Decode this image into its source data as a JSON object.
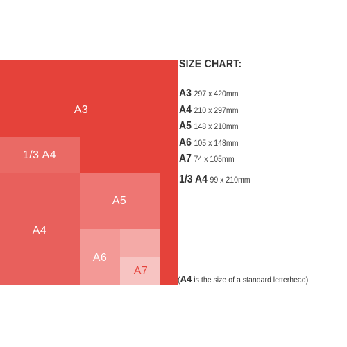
{
  "diagram": {
    "rectangles": [
      {
        "id": "a3",
        "label": "A3",
        "color": "#e5423a",
        "label_color": "#ffffff"
      },
      {
        "id": "one-third-a4",
        "label": "1/3 A4",
        "color": "#ea6a65",
        "label_color": "#ffffff"
      },
      {
        "id": "a4",
        "label": "A4",
        "color": "#e8605c",
        "label_color": "#ffffff"
      },
      {
        "id": "a5",
        "label": "A5",
        "color": "#ee7673",
        "label_color": "#ffffff"
      },
      {
        "id": "a6",
        "label": "A6",
        "color": "#f39996",
        "label_color": "#ffffff"
      },
      {
        "id": "a6-upper-half",
        "label": "",
        "color": "#f4aaa7",
        "label_color": "#ffffff"
      },
      {
        "id": "a7",
        "label": "A7",
        "color": "#f7c4c2",
        "label_color": "#e5423a"
      }
    ]
  },
  "legend": {
    "title": "SIZE CHART:",
    "items": [
      {
        "name": "A3",
        "dims": "297 x 420mm"
      },
      {
        "name": "A4",
        "dims": "210 x 297mm"
      },
      {
        "name": "A5",
        "dims": "148 x 210mm"
      },
      {
        "name": "A6",
        "dims": "105 x 148mm"
      },
      {
        "name": "A7",
        "dims": "74 x 105mm"
      },
      {
        "name": "1/3 A4",
        "dims": "99 x 210mm"
      }
    ]
  },
  "note": {
    "open": "(",
    "strong": "A4",
    "text": " is the size of a standard letterhead)"
  }
}
